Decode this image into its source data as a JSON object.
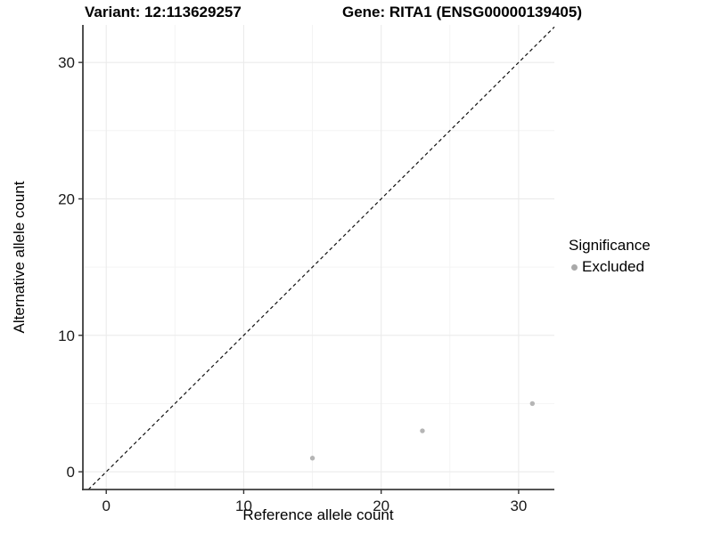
{
  "titles": {
    "variant": "Variant: 12:113629257",
    "gene": "Gene: RITA1 (ENSG00000139405)"
  },
  "chart_data": {
    "type": "scatter",
    "xlabel": "Reference allele count",
    "ylabel": "Alternative allele count",
    "xlim": [
      -1.7,
      32.6
    ],
    "ylim": [
      -1.3,
      32.75
    ],
    "x_ticks": [
      0,
      10,
      20,
      30
    ],
    "y_ticks": [
      0,
      10,
      20,
      30
    ],
    "x_minor_ticks": [
      5,
      15,
      25
    ],
    "y_minor_ticks": [
      5,
      15,
      25
    ],
    "grid": "major and minor, light gray, on white panel",
    "series": [
      {
        "name": "Excluded",
        "points": [
          [
            15,
            1
          ],
          [
            23,
            3
          ],
          [
            31,
            5
          ]
        ],
        "color": "#b5b5b5",
        "point_radius": 2.7
      }
    ],
    "reference_line": {
      "kind": "identity y=x",
      "style": "dashed",
      "color": "#111111"
    },
    "legend": {
      "title": "Significance",
      "position": "right",
      "items": [
        {
          "label": "Excluded",
          "color": "#a9a9a9"
        }
      ]
    },
    "colors": {
      "grid_major": "#ebebeb",
      "grid_minor": "#f4f4f4",
      "axis_line": "#3c3c3c",
      "tick_mark": "#333333",
      "tick_text": "#1a1a1a"
    }
  }
}
